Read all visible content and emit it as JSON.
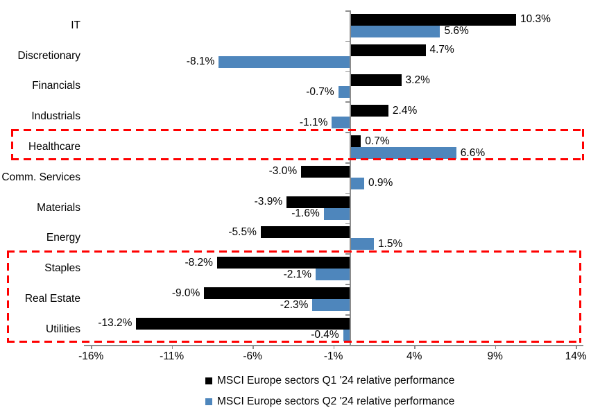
{
  "chart_data": {
    "type": "bar",
    "orientation": "horizontal",
    "title": "",
    "categories": [
      "IT",
      "Discretionary",
      "Financials",
      "Industrials",
      "Healthcare",
      "Comm. Services",
      "Materials",
      "Energy",
      "Staples",
      "Real Estate",
      "Utilities"
    ],
    "series": [
      {
        "name": "MSCI Europe sectors Q1 '24 relative performance",
        "color": "#000000",
        "values": [
          10.3,
          4.7,
          3.2,
          2.4,
          0.7,
          -3.0,
          -3.9,
          -5.5,
          -8.2,
          -9.0,
          -13.2
        ],
        "labels": [
          "10.3%",
          "4.7%",
          "3.2%",
          "2.4%",
          "0.7%",
          "-3.0%",
          "-3.9%",
          "-5.5%",
          "-8.2%",
          "-9.0%",
          "-13.2%"
        ]
      },
      {
        "name": "MSCI Europe sectors Q2 '24 relative performance",
        "color": "#4e86bc",
        "values": [
          5.6,
          -8.1,
          -0.7,
          -1.1,
          6.6,
          0.9,
          -1.6,
          1.5,
          -2.1,
          -2.3,
          -0.4
        ],
        "labels": [
          "5.6%",
          "-8.1%",
          "-0.7%",
          "-1.1%",
          "6.6%",
          "0.9%",
          "-1.6%",
          "1.5%",
          "-2.1%",
          "-2.3%",
          "-0.4%"
        ]
      }
    ],
    "x_axis": {
      "tick_labels": [
        "-16%",
        "-11%",
        "-6%",
        "-1%",
        "4%",
        "9%",
        "14%"
      ],
      "tick_values": [
        -16,
        -11,
        -6,
        -1,
        4,
        9,
        14
      ],
      "min": -16.5,
      "max": 14.5
    },
    "grid": false,
    "legend_position": "bottom",
    "highlight_boxes": [
      {
        "name": "healthcare-highlight",
        "from_category": "Healthcare",
        "to_category": "Healthcare",
        "color": "#ff0000",
        "style": "dashed"
      },
      {
        "name": "defensive-sectors-highlight",
        "from_category": "Staples",
        "to_category": "Utilities",
        "color": "#ff0000",
        "style": "dashed"
      }
    ],
    "colors": {
      "axis": "#8c8c8c",
      "highlight": "#ff0000"
    }
  }
}
